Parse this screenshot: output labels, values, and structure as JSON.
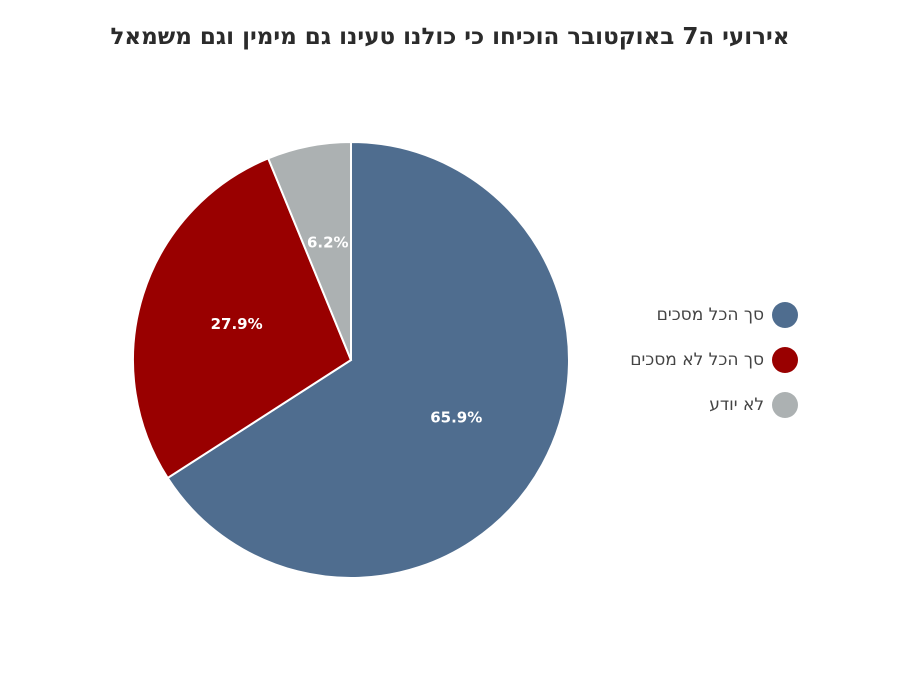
{
  "chart_data": {
    "type": "pie",
    "title": "אירועי ה7 באוקטובר הוכיחו כי כולנו טעינו גם מימין וגם משמאל",
    "legend_position": "right",
    "slices": [
      {
        "label": "סך הכל מסכים",
        "value": 65.9,
        "display": "65.9%",
        "color": "#4f6d8f"
      },
      {
        "label": "סך הכל לא מסכים",
        "value": 27.9,
        "display": "27.9%",
        "color": "#990000"
      },
      {
        "label": "לא יודע",
        "value": 6.2,
        "display": "6.2%",
        "color": "#acb1b2"
      }
    ]
  }
}
